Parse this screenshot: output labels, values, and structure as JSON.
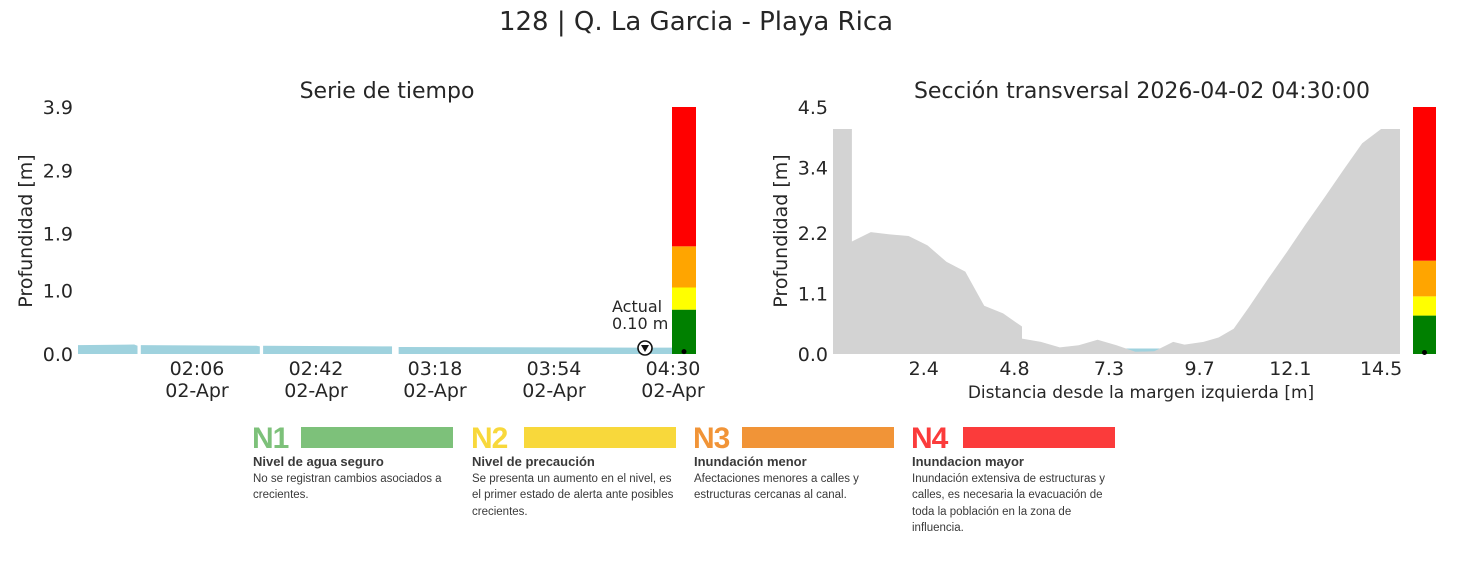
{
  "colors": {
    "water": "#9fd2de",
    "ground": "#d3d3d3",
    "green": "#008000",
    "yellow": "#ffff00",
    "orange": "#ffa500",
    "red": "#ff0000",
    "text": "#262626"
  },
  "figure_title": "128 | Q. La Garcia - Playa Rica",
  "chart_data": [
    {
      "type": "area",
      "title": "Serie de tiempo",
      "xlabel": "",
      "ylabel": "Profundidad [m]",
      "ylim": [
        0,
        3.9
      ],
      "y_ticks": [
        "0.0",
        "1.0",
        "1.9",
        "2.9",
        "3.9"
      ],
      "x_range": [
        "2026-04-02 01:30",
        "2026-04-02 04:30"
      ],
      "x_ticks": [
        {
          "time": "2026-04-02 02:06",
          "label": "02:06",
          "sublabel": "02-Apr"
        },
        {
          "time": "2026-04-02 02:42",
          "label": "02:42",
          "sublabel": "02-Apr"
        },
        {
          "time": "2026-04-02 03:18",
          "label": "03:18",
          "sublabel": "02-Apr"
        },
        {
          "time": "2026-04-02 03:54",
          "label": "03:54",
          "sublabel": "02-Apr"
        },
        {
          "time": "2026-04-02 04:30",
          "label": "04:30",
          "sublabel": "02-Apr"
        }
      ],
      "series": [
        {
          "segments": [
            {
              "t": [
                "2026-04-02 01:30",
                "2026-04-02 01:47",
                "2026-04-02 01:48"
              ],
              "depth": [
                0.14,
                0.15,
                0.13
              ]
            },
            {
              "t": [
                "2026-04-02 01:49",
                "2026-04-02 02:24",
                "2026-04-02 02:25"
              ],
              "depth": [
                0.14,
                0.13,
                0.12
              ]
            },
            {
              "t": [
                "2026-04-02 02:26",
                "2026-04-02 03:03",
                "2026-04-02 03:05"
              ],
              "depth": [
                0.13,
                0.12,
                0.12
              ]
            },
            {
              "t": [
                "2026-04-02 03:07",
                "2026-04-02 04:30"
              ],
              "depth": [
                0.11,
                0.1
              ]
            }
          ]
        }
      ],
      "current": {
        "label": "Actual",
        "value": "0.10 m",
        "depth": 0.1
      },
      "thresholds": [
        0,
        0.7,
        1.05,
        1.7,
        3.9
      ],
      "threshold_colors": [
        "green",
        "yellow",
        "orange",
        "red"
      ]
    },
    {
      "type": "area",
      "title": "Sección transversal 2026-04-02 04:30:00",
      "xlabel": "Distancia desde la margen izquierda [m]",
      "ylabel": "Profundidad [m]",
      "xlim": [
        0,
        15
      ],
      "ylim": [
        0,
        4.5
      ],
      "x_ticks": [
        "2.4",
        "4.8",
        "7.3",
        "9.7",
        "12.1",
        "14.5"
      ],
      "y_ticks": [
        "0.0",
        "1.1",
        "2.2",
        "3.4",
        "4.5"
      ],
      "water_level": 0.1,
      "profile": {
        "x": [
          0,
          0.5,
          0.5,
          1.0,
          1.5,
          2.0,
          2.5,
          3.0,
          3.5,
          4.0,
          4.5,
          5.0,
          5.0,
          5.5,
          6.0,
          6.5,
          7.0,
          7.5,
          8.0,
          8.5,
          9.0,
          9.3,
          9.8,
          10.2,
          10.6,
          11.0,
          11.5,
          12.0,
          12.5,
          13.0,
          13.5,
          14.0,
          14.5,
          15.0
        ],
        "elevation": [
          4.1,
          4.1,
          2.05,
          2.22,
          2.18,
          2.15,
          1.98,
          1.68,
          1.5,
          0.88,
          0.74,
          0.5,
          0.28,
          0.22,
          0.12,
          0.16,
          0.26,
          0.16,
          0.04,
          0.05,
          0.22,
          0.17,
          0.22,
          0.3,
          0.46,
          0.85,
          1.36,
          1.85,
          2.36,
          2.85,
          3.35,
          3.84,
          4.1,
          4.1
        ]
      },
      "thresholds": [
        0,
        0.7,
        1.05,
        1.7,
        4.5
      ],
      "threshold_colors": [
        "green",
        "yellow",
        "orange",
        "red"
      ]
    }
  ],
  "legend": [
    {
      "code": "N1",
      "name": "Nivel de agua seguro",
      "description": "No se registran cambios asociados a crecientes.",
      "color": "#7dc17a"
    },
    {
      "code": "N2",
      "name": "Nivel de precaución",
      "description": "Se presenta un aumento en el nivel, es el primer estado de alerta ante posibles crecientes.",
      "color": "#f8d83b"
    },
    {
      "code": "N3",
      "name": "Inundación menor",
      "description": "Afectaciones menores a calles y estructuras cercanas al canal.",
      "color": "#f19437"
    },
    {
      "code": "N4",
      "name": "Inundacion mayor",
      "description": "Inundación extensiva de estructuras y calles, es necesaria la evacuación de toda la población en la zona de influencia.",
      "color": "#fb3b3b"
    }
  ]
}
